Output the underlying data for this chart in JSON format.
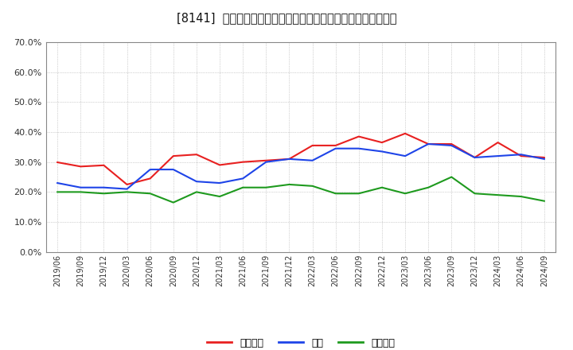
{
  "title": "[8141]  売上債権、在庫、買入債務の総資産に対する比率の推移",
  "x_labels": [
    "2019/06",
    "2019/09",
    "2019/12",
    "2020/03",
    "2020/06",
    "2020/09",
    "2020/12",
    "2021/03",
    "2021/06",
    "2021/09",
    "2021/12",
    "2022/03",
    "2022/06",
    "2022/09",
    "2022/12",
    "2023/03",
    "2023/06",
    "2023/09",
    "2023/12",
    "2024/03",
    "2024/06",
    "2024/09"
  ],
  "urikake": [
    29.9,
    28.5,
    28.9,
    22.5,
    24.5,
    32.0,
    32.5,
    29.0,
    30.0,
    30.5,
    31.0,
    35.5,
    35.5,
    38.5,
    36.5,
    39.5,
    36.0,
    36.0,
    31.5,
    36.5,
    32.0,
    31.5
  ],
  "zaiko": [
    23.0,
    21.5,
    21.5,
    21.0,
    27.5,
    27.5,
    23.5,
    23.0,
    24.5,
    30.0,
    31.0,
    30.5,
    34.5,
    34.5,
    33.5,
    32.0,
    36.0,
    35.5,
    31.5,
    32.0,
    32.5,
    31.0
  ],
  "kaiire": [
    20.0,
    20.0,
    19.5,
    20.0,
    19.5,
    16.5,
    20.0,
    18.5,
    21.5,
    21.5,
    22.5,
    22.0,
    19.5,
    19.5,
    21.5,
    19.5,
    21.5,
    25.0,
    19.5,
    19.0,
    18.5,
    17.0
  ],
  "urikake_color": "#e82020",
  "zaiko_color": "#1e44e8",
  "kaiire_color": "#1e9a1e",
  "ylim": [
    0,
    70
  ],
  "yticks": [
    0,
    10,
    20,
    30,
    40,
    50,
    60,
    70
  ],
  "background_color": "#ffffff",
  "grid_color": "#aaaaaa",
  "legend_labels": [
    "売上債権",
    "在庫",
    "買入債務"
  ]
}
